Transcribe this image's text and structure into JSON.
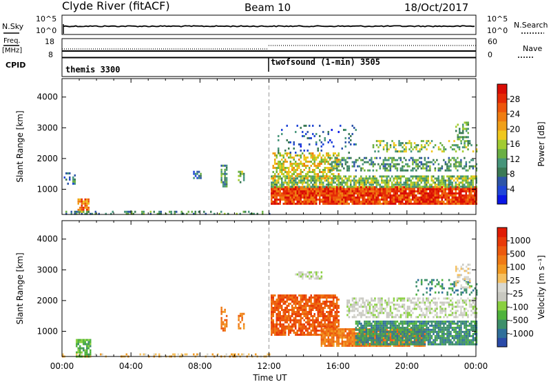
{
  "header": {
    "station": "Clyde River (fitACF)",
    "beam": "Beam 10",
    "date": "18/Oct/2017"
  },
  "left_labels": {
    "nsky": "N.Sky",
    "freq_top": "Freq.",
    "freq_bottom": "[MHz]",
    "cpid": "CPID"
  },
  "right_labels": {
    "nsearch": "N.Search",
    "nave": "Nave"
  },
  "nsky_panel": {
    "ticks_left": [
      "10^5",
      "10^0"
    ],
    "ticks_right": [
      "10^5",
      "10^0"
    ]
  },
  "freq_panel": {
    "ticks_left": [
      "18",
      "8"
    ],
    "ticks_right": [
      "60",
      "0"
    ]
  },
  "cpid_panel": {
    "segments": [
      {
        "label": "themis 3300",
        "start_hour": 0
      },
      {
        "label": "twofsound (1-min) 3505",
        "start_hour": 12
      }
    ]
  },
  "chart_data": [
    {
      "type": "heatmap",
      "name": "power",
      "ylabel": "Slant Range [km]",
      "xlim": [
        0,
        24
      ],
      "ylim": [
        180,
        4600
      ],
      "yticks": [
        1000,
        2000,
        3000,
        4000
      ],
      "colorbar": {
        "label": "Power [dB]",
        "range": [
          0,
          32
        ],
        "ticks": [
          4,
          8,
          12,
          16,
          20,
          24,
          28
        ],
        "colors": [
          "#0a16e6",
          "#2046d8",
          "#2d55a8",
          "#3a7a55",
          "#46957a",
          "#6aaf43",
          "#a2cc32",
          "#f0c81e",
          "#f0a019",
          "#ef7d12",
          "#ee560c",
          "#e52a06",
          "#d90d05"
        ]
      },
      "bands": [
        {
          "x0": 0.9,
          "x1": 1.5,
          "y0": 250,
          "y1": 700,
          "value": 24,
          "density": 0.8
        },
        {
          "x0": 0.1,
          "x1": 0.7,
          "y0": 1150,
          "y1": 1550,
          "value": 8,
          "density": 0.5
        },
        {
          "x0": 0.0,
          "x1": 12.0,
          "y0": 190,
          "y1": 300,
          "value": 10,
          "density": 0.35
        },
        {
          "x0": 9.2,
          "x1": 9.5,
          "y0": 1100,
          "y1": 1800,
          "value": 10,
          "density": 0.6
        },
        {
          "x0": 10.2,
          "x1": 10.5,
          "y0": 1200,
          "y1": 1600,
          "value": 14,
          "density": 0.6
        },
        {
          "x0": 7.6,
          "x1": 8.0,
          "y0": 1350,
          "y1": 1600,
          "value": 8,
          "density": 0.5
        },
        {
          "x0": 12.1,
          "x1": 24.0,
          "y0": 550,
          "y1": 1100,
          "value": 28,
          "density": 0.95
        },
        {
          "x0": 12.1,
          "x1": 24.0,
          "y0": 1100,
          "y1": 1450,
          "value": 14,
          "density": 0.75
        },
        {
          "x0": 12.2,
          "x1": 16.0,
          "y0": 1350,
          "y1": 2200,
          "value": 18,
          "density": 0.55
        },
        {
          "x0": 15.5,
          "x1": 24.0,
          "y0": 1600,
          "y1": 2050,
          "value": 10,
          "density": 0.45
        },
        {
          "x0": 18.0,
          "x1": 24.0,
          "y0": 2200,
          "y1": 2600,
          "value": 14,
          "density": 0.3
        },
        {
          "x0": 12.5,
          "x1": 17.0,
          "y0": 2200,
          "y1": 3100,
          "value": 6,
          "density": 0.12
        },
        {
          "x0": 22.8,
          "x1": 23.6,
          "y0": 2400,
          "y1": 3200,
          "value": 12,
          "density": 0.35
        }
      ]
    },
    {
      "type": "heatmap",
      "name": "velocity",
      "xlabel": "Time UT",
      "ylabel": "Slant Range [km]",
      "xlim": [
        0,
        24
      ],
      "ylim": [
        180,
        4600
      ],
      "yticks": [
        1000,
        2000,
        3000,
        4000
      ],
      "xticks": [
        "00:00",
        "04:00",
        "08:00",
        "12:00",
        "16:00",
        "20:00",
        "00:00"
      ],
      "colorbar": {
        "label": "Velocity [m s⁻¹]",
        "ticks": [
          "1000",
          "500",
          "100",
          "25",
          "-25",
          "-100",
          "-500",
          "-1000"
        ],
        "colors": [
          "#2a4aa8",
          "#2f6f9a",
          "#3d8f6a",
          "#4fb33c",
          "#8ad040",
          "#c8c8c0",
          "#d8d8d0",
          "#f5c060",
          "#f29a22",
          "#ef7a15",
          "#ec5a0e",
          "#e83a08",
          "#e01b04"
        ]
      },
      "bands": [
        {
          "x0": 0.8,
          "x1": 1.6,
          "y0": 200,
          "y1": 750,
          "value": 3,
          "density": 0.8
        },
        {
          "x0": 0.0,
          "x1": 12.0,
          "y0": 190,
          "y1": 280,
          "value": 7,
          "density": 0.35
        },
        {
          "x0": 9.2,
          "x1": 9.5,
          "y0": 1000,
          "y1": 1800,
          "value": 9,
          "density": 0.6
        },
        {
          "x0": 10.2,
          "x1": 10.5,
          "y0": 1100,
          "y1": 1600,
          "value": 9,
          "density": 0.6
        },
        {
          "x0": 12.1,
          "x1": 16.0,
          "y0": 900,
          "y1": 2200,
          "value": 10,
          "density": 0.8
        },
        {
          "x0": 15.0,
          "x1": 21.0,
          "y0": 500,
          "y1": 1100,
          "value": 9,
          "density": 0.9
        },
        {
          "x0": 17.0,
          "x1": 24.0,
          "y0": 550,
          "y1": 1350,
          "value": 2,
          "density": 0.85
        },
        {
          "x0": 16.5,
          "x1": 24.0,
          "y0": 1450,
          "y1": 2100,
          "value": 5,
          "density": 0.55
        },
        {
          "x0": 13.5,
          "x1": 15.0,
          "y0": 2700,
          "y1": 2950,
          "value": 5,
          "density": 0.6
        },
        {
          "x0": 20.5,
          "x1": 24.0,
          "y0": 2200,
          "y1": 2700,
          "value": 2,
          "density": 0.3
        },
        {
          "x0": 22.8,
          "x1": 23.6,
          "y0": 2400,
          "y1": 3200,
          "value": 6,
          "density": 0.35
        }
      ]
    }
  ]
}
